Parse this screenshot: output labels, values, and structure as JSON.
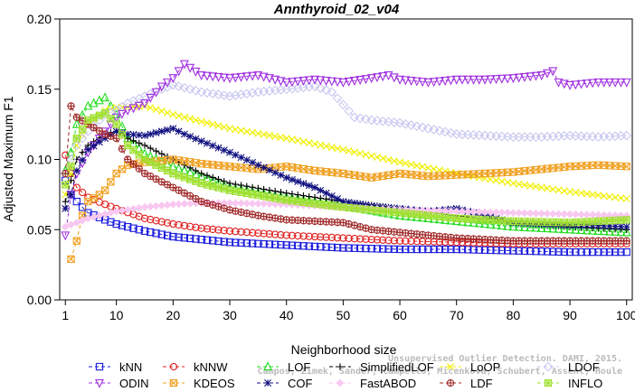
{
  "chart_data": {
    "type": "line",
    "title": "Annthyroid_02_v04",
    "xlabel": "Neighborhood size",
    "ylabel": "Adjusted Maximum F1",
    "xlim": [
      0,
      101
    ],
    "ylim": [
      0,
      0.2
    ],
    "x_ticks": [
      1,
      10,
      20,
      30,
      40,
      50,
      60,
      70,
      80,
      90,
      100
    ],
    "x_tick_labels": [
      "1",
      "10",
      "20",
      "30",
      "40",
      "50",
      "60",
      "70",
      "80",
      "90",
      "100"
    ],
    "y_ticks": [
      0,
      0.05,
      0.1,
      0.15,
      0.2
    ],
    "y_tick_labels": [
      "0.00",
      "0.05",
      "0.10",
      "0.15",
      "0.20"
    ],
    "grid": false,
    "legend_position": "bottom",
    "credit": [
      "Campos, Zimek, Sander, Campello, Micenkova, Schubert, Assent, Houle",
      "Unsupervised Outlier Detection. DAMI, 2015."
    ],
    "series": [
      {
        "name": "kNN",
        "color": "#1a1adc",
        "marker": "square",
        "points": [
          [
            1,
            0.085
          ],
          [
            2,
            0.075
          ],
          [
            3,
            0.07
          ],
          [
            5,
            0.062
          ],
          [
            8,
            0.057
          ],
          [
            10,
            0.054
          ],
          [
            15,
            0.049
          ],
          [
            20,
            0.045
          ],
          [
            25,
            0.043
          ],
          [
            30,
            0.041
          ],
          [
            40,
            0.039
          ],
          [
            50,
            0.037
          ],
          [
            60,
            0.036
          ],
          [
            70,
            0.036
          ],
          [
            80,
            0.035
          ],
          [
            90,
            0.034
          ],
          [
            100,
            0.034
          ]
        ]
      },
      {
        "name": "kNNW",
        "color": "#e02020",
        "marker": "circle",
        "points": [
          [
            1,
            0.103
          ],
          [
            2,
            0.09
          ],
          [
            3,
            0.08
          ],
          [
            5,
            0.073
          ],
          [
            8,
            0.068
          ],
          [
            10,
            0.065
          ],
          [
            15,
            0.058
          ],
          [
            20,
            0.054
          ],
          [
            25,
            0.051
          ],
          [
            30,
            0.049
          ],
          [
            40,
            0.046
          ],
          [
            50,
            0.044
          ],
          [
            60,
            0.042
          ],
          [
            70,
            0.041
          ],
          [
            80,
            0.04
          ],
          [
            90,
            0.04
          ],
          [
            100,
            0.04
          ]
        ]
      },
      {
        "name": "LOF",
        "color": "#22dd22",
        "marker": "triangle-up",
        "points": [
          [
            1,
            0.092
          ],
          [
            2,
            0.105
          ],
          [
            3,
            0.125
          ],
          [
            5,
            0.138
          ],
          [
            7,
            0.142
          ],
          [
            8,
            0.144
          ],
          [
            10,
            0.132
          ],
          [
            12,
            0.115
          ],
          [
            15,
            0.104
          ],
          [
            20,
            0.095
          ],
          [
            25,
            0.088
          ],
          [
            30,
            0.08
          ],
          [
            40,
            0.073
          ],
          [
            50,
            0.067
          ],
          [
            60,
            0.06
          ],
          [
            70,
            0.056
          ],
          [
            80,
            0.052
          ],
          [
            90,
            0.05
          ],
          [
            100,
            0.048
          ]
        ]
      },
      {
        "name": "SimplifiedLOF",
        "color": "#000000",
        "marker": "plus",
        "points": [
          [
            1,
            0.07
          ],
          [
            2,
            0.085
          ],
          [
            3,
            0.1
          ],
          [
            5,
            0.11
          ],
          [
            8,
            0.118
          ],
          [
            10,
            0.12
          ],
          [
            12,
            0.115
          ],
          [
            15,
            0.11
          ],
          [
            20,
            0.1
          ],
          [
            25,
            0.09
          ],
          [
            30,
            0.083
          ],
          [
            40,
            0.076
          ],
          [
            50,
            0.07
          ],
          [
            60,
            0.065
          ],
          [
            70,
            0.06
          ],
          [
            80,
            0.055
          ],
          [
            90,
            0.052
          ],
          [
            100,
            0.05
          ]
        ]
      },
      {
        "name": "LoOP",
        "color": "#f0f000",
        "marker": "x",
        "points": [
          [
            1,
            0.075
          ],
          [
            2,
            0.09
          ],
          [
            3,
            0.11
          ],
          [
            5,
            0.125
          ],
          [
            8,
            0.135
          ],
          [
            10,
            0.137
          ],
          [
            15,
            0.138
          ],
          [
            20,
            0.132
          ],
          [
            25,
            0.127
          ],
          [
            30,
            0.122
          ],
          [
            40,
            0.115
          ],
          [
            50,
            0.107
          ],
          [
            60,
            0.098
          ],
          [
            70,
            0.09
          ],
          [
            80,
            0.083
          ],
          [
            90,
            0.077
          ],
          [
            100,
            0.072
          ]
        ]
      },
      {
        "name": "LDOF",
        "color": "#c8c8f0",
        "marker": "diamond",
        "points": [
          [
            1,
            0.09
          ],
          [
            3,
            0.11
          ],
          [
            5,
            0.12
          ],
          [
            8,
            0.132
          ],
          [
            10,
            0.135
          ],
          [
            12,
            0.14
          ],
          [
            15,
            0.145
          ],
          [
            18,
            0.15
          ],
          [
            20,
            0.153
          ],
          [
            25,
            0.148
          ],
          [
            30,
            0.145
          ],
          [
            35,
            0.148
          ],
          [
            40,
            0.15
          ],
          [
            45,
            0.152
          ],
          [
            48,
            0.148
          ],
          [
            52,
            0.13
          ],
          [
            55,
            0.128
          ],
          [
            60,
            0.126
          ],
          [
            65,
            0.122
          ],
          [
            70,
            0.118
          ],
          [
            75,
            0.117
          ],
          [
            80,
            0.116
          ],
          [
            85,
            0.116
          ],
          [
            90,
            0.117
          ],
          [
            95,
            0.116
          ],
          [
            100,
            0.117
          ]
        ]
      },
      {
        "name": "ODIN",
        "color": "#a030e0",
        "marker": "triangle-down",
        "points": [
          [
            1,
            0.046
          ],
          [
            2,
            0.075
          ],
          [
            3,
            0.09
          ],
          [
            5,
            0.105
          ],
          [
            8,
            0.12
          ],
          [
            10,
            0.13
          ],
          [
            12,
            0.135
          ],
          [
            15,
            0.14
          ],
          [
            18,
            0.152
          ],
          [
            20,
            0.158
          ],
          [
            22,
            0.168
          ],
          [
            25,
            0.16
          ],
          [
            30,
            0.158
          ],
          [
            35,
            0.16
          ],
          [
            40,
            0.155
          ],
          [
            45,
            0.157
          ],
          [
            50,
            0.155
          ],
          [
            55,
            0.158
          ],
          [
            58,
            0.16
          ],
          [
            60,
            0.157
          ],
          [
            65,
            0.155
          ],
          [
            70,
            0.157
          ],
          [
            75,
            0.157
          ],
          [
            80,
            0.158
          ],
          [
            85,
            0.16
          ],
          [
            87,
            0.163
          ],
          [
            88,
            0.155
          ],
          [
            90,
            0.153
          ],
          [
            95,
            0.155
          ],
          [
            100,
            0.155
          ]
        ]
      },
      {
        "name": "KDEOS",
        "color": "#f0a020",
        "marker": "square-x",
        "points": [
          [
            2,
            0.029
          ],
          [
            3,
            0.042
          ],
          [
            4,
            0.06
          ],
          [
            5,
            0.07
          ],
          [
            7,
            0.075
          ],
          [
            8,
            0.078
          ],
          [
            10,
            0.09
          ],
          [
            12,
            0.096
          ],
          [
            15,
            0.098
          ],
          [
            20,
            0.1
          ],
          [
            25,
            0.097
          ],
          [
            30,
            0.095
          ],
          [
            35,
            0.093
          ],
          [
            40,
            0.095
          ],
          [
            45,
            0.092
          ],
          [
            50,
            0.09
          ],
          [
            55,
            0.087
          ],
          [
            60,
            0.09
          ],
          [
            65,
            0.088
          ],
          [
            70,
            0.089
          ],
          [
            75,
            0.09
          ],
          [
            80,
            0.091
          ],
          [
            85,
            0.093
          ],
          [
            90,
            0.095
          ],
          [
            95,
            0.096
          ],
          [
            100,
            0.095
          ]
        ]
      },
      {
        "name": "COF",
        "color": "#101080",
        "marker": "asterisk",
        "points": [
          [
            1,
            0.065
          ],
          [
            2,
            0.075
          ],
          [
            3,
            0.092
          ],
          [
            5,
            0.107
          ],
          [
            8,
            0.115
          ],
          [
            10,
            0.12
          ],
          [
            12,
            0.118
          ],
          [
            15,
            0.117
          ],
          [
            18,
            0.12
          ],
          [
            20,
            0.122
          ],
          [
            22,
            0.118
          ],
          [
            25,
            0.113
          ],
          [
            30,
            0.105
          ],
          [
            35,
            0.096
          ],
          [
            40,
            0.087
          ],
          [
            45,
            0.08
          ],
          [
            50,
            0.07
          ],
          [
            55,
            0.067
          ],
          [
            60,
            0.065
          ],
          [
            65,
            0.063
          ],
          [
            70,
            0.065
          ],
          [
            75,
            0.06
          ],
          [
            80,
            0.055
          ],
          [
            85,
            0.054
          ],
          [
            90,
            0.053
          ],
          [
            95,
            0.053
          ],
          [
            100,
            0.052
          ]
        ]
      },
      {
        "name": "FastABOD",
        "color": "#f8c8f0",
        "marker": "diamond-filled",
        "points": [
          [
            1,
            0.052
          ],
          [
            3,
            0.055
          ],
          [
            5,
            0.058
          ],
          [
            10,
            0.063
          ],
          [
            15,
            0.066
          ],
          [
            20,
            0.068
          ],
          [
            25,
            0.069
          ],
          [
            30,
            0.069
          ],
          [
            40,
            0.068
          ],
          [
            50,
            0.066
          ],
          [
            60,
            0.064
          ],
          [
            70,
            0.063
          ],
          [
            80,
            0.062
          ],
          [
            90,
            0.061
          ],
          [
            100,
            0.06
          ]
        ]
      },
      {
        "name": "LDF",
        "color": "#a02828",
        "marker": "circle-plus",
        "points": [
          [
            1,
            0.09
          ],
          [
            2,
            0.138
          ],
          [
            3,
            0.13
          ],
          [
            5,
            0.125
          ],
          [
            8,
            0.118
          ],
          [
            10,
            0.115
          ],
          [
            12,
            0.1
          ],
          [
            15,
            0.09
          ],
          [
            20,
            0.08
          ],
          [
            25,
            0.07
          ],
          [
            30,
            0.064
          ],
          [
            35,
            0.06
          ],
          [
            40,
            0.057
          ],
          [
            45,
            0.056
          ],
          [
            50,
            0.055
          ],
          [
            55,
            0.05
          ],
          [
            60,
            0.048
          ],
          [
            70,
            0.044
          ],
          [
            80,
            0.042
          ],
          [
            90,
            0.042
          ],
          [
            100,
            0.042
          ]
        ]
      },
      {
        "name": "INFLO",
        "color": "#a0e030",
        "marker": "square-cross",
        "points": [
          [
            1,
            0.082
          ],
          [
            2,
            0.095
          ],
          [
            3,
            0.115
          ],
          [
            5,
            0.128
          ],
          [
            8,
            0.133
          ],
          [
            10,
            0.125
          ],
          [
            12,
            0.11
          ],
          [
            15,
            0.1
          ],
          [
            20,
            0.09
          ],
          [
            25,
            0.083
          ],
          [
            30,
            0.078
          ],
          [
            40,
            0.071
          ],
          [
            50,
            0.066
          ],
          [
            60,
            0.062
          ],
          [
            70,
            0.058
          ],
          [
            80,
            0.056
          ],
          [
            90,
            0.055
          ],
          [
            100,
            0.057
          ]
        ]
      }
    ]
  }
}
